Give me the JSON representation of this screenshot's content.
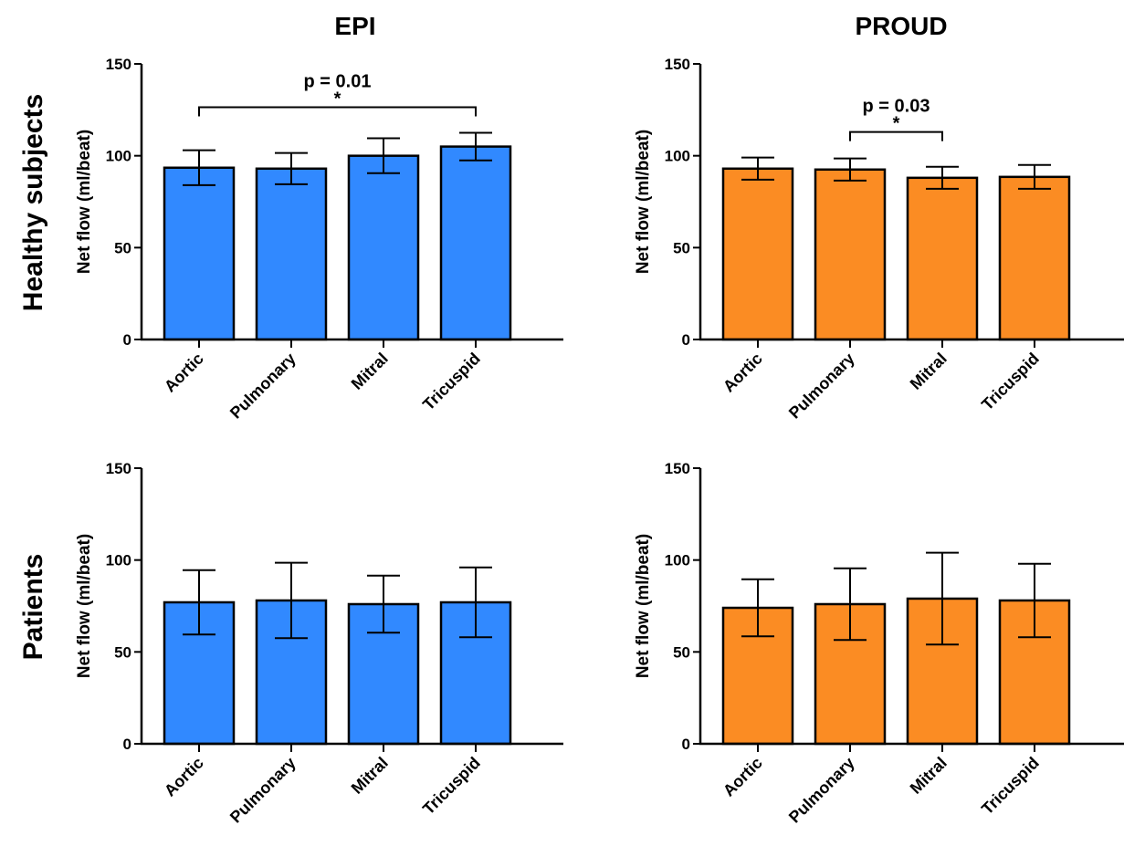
{
  "figure": {
    "column_titles": [
      "EPI",
      "PROUD"
    ],
    "row_labels": [
      "Healthy subjects",
      "Patients"
    ]
  },
  "colors": {
    "EPI": "#3189FF",
    "PROUD": "#FB8C23"
  },
  "chart_data": [
    {
      "type": "bar",
      "id": "epi-healthy",
      "method": "EPI",
      "group": "Healthy subjects",
      "categories": [
        "Aortic",
        "Pulmonary",
        "Mitral",
        "Tricuspid"
      ],
      "values": [
        93.5,
        93,
        100,
        105
      ],
      "errors": [
        9.5,
        8.5,
        9.5,
        7.5
      ],
      "ylabel": "Net flow (ml/beat)",
      "ylim": [
        0,
        150
      ],
      "yticks": [
        "0",
        "50",
        "100",
        "150"
      ],
      "significance": {
        "from": 0,
        "to": 3,
        "label": "p = 0.01",
        "star": "*"
      }
    },
    {
      "type": "bar",
      "id": "proud-healthy",
      "method": "PROUD",
      "group": "Healthy subjects",
      "categories": [
        "Aortic",
        "Pulmonary",
        "Mitral",
        "Tricuspid"
      ],
      "values": [
        93,
        92.5,
        88,
        88.5
      ],
      "errors": [
        6,
        6,
        6,
        6.5
      ],
      "ylabel": "Net flow (ml/beat)",
      "ylim": [
        0,
        150
      ],
      "yticks": [
        "0",
        "50",
        "100",
        "150"
      ],
      "significance": {
        "from": 1,
        "to": 2,
        "label": "p = 0.03",
        "star": "*"
      }
    },
    {
      "type": "bar",
      "id": "epi-patients",
      "method": "EPI",
      "group": "Patients",
      "categories": [
        "Aortic",
        "Pulmonary",
        "Mitral",
        "Tricuspid"
      ],
      "values": [
        77,
        78,
        76,
        77
      ],
      "errors": [
        17.5,
        20.5,
        15.5,
        19
      ],
      "ylabel": "Net flow (ml/beat)",
      "ylim": [
        0,
        150
      ],
      "yticks": [
        "0",
        "50",
        "100",
        "150"
      ]
    },
    {
      "type": "bar",
      "id": "proud-patients",
      "method": "PROUD",
      "group": "Patients",
      "categories": [
        "Aortic",
        "Pulmonary",
        "Mitral",
        "Tricuspid"
      ],
      "values": [
        74,
        76,
        79,
        78
      ],
      "errors": [
        15.5,
        19.5,
        25,
        20
      ],
      "ylabel": "Net flow (ml/beat)",
      "ylim": [
        0,
        150
      ],
      "yticks": [
        "0",
        "50",
        "100",
        "150"
      ]
    }
  ]
}
